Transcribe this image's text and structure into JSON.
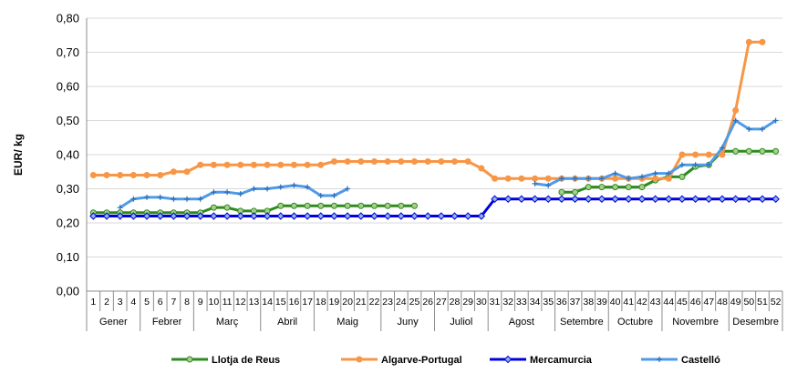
{
  "chart_data": {
    "type": "line",
    "ylabel": "EUR/ kg",
    "ylim": [
      0,
      0.8
    ],
    "yticks": [
      "0,00",
      "0,10",
      "0,20",
      "0,30",
      "0,40",
      "0,50",
      "0,60",
      "0,70",
      "0,80"
    ],
    "grid": "horizontal",
    "legend_position": "bottom",
    "weeks": [
      "1",
      "2",
      "3",
      "4",
      "5",
      "6",
      "7",
      "8",
      "9",
      "10",
      "11",
      "12",
      "13",
      "14",
      "15",
      "16",
      "17",
      "18",
      "19",
      "20",
      "21",
      "22",
      "23",
      "24",
      "25",
      "26",
      "27",
      "28",
      "29",
      "30",
      "31",
      "32",
      "33",
      "34",
      "35",
      "36",
      "37",
      "38",
      "39",
      "40",
      "41",
      "42",
      "43",
      "44",
      "45",
      "46",
      "47",
      "48",
      "49",
      "50",
      "51",
      "52"
    ],
    "months": [
      {
        "name": "Gener",
        "start": 1,
        "end": 4
      },
      {
        "name": "Febrer",
        "start": 5,
        "end": 8
      },
      {
        "name": "Març",
        "start": 9,
        "end": 13
      },
      {
        "name": "Abril",
        "start": 14,
        "end": 17
      },
      {
        "name": "Maig",
        "start": 18,
        "end": 22
      },
      {
        "name": "Juny",
        "start": 23,
        "end": 26
      },
      {
        "name": "Juliol",
        "start": 27,
        "end": 30
      },
      {
        "name": "Agost",
        "start": 31,
        "end": 35
      },
      {
        "name": "Setembre",
        "start": 36,
        "end": 39
      },
      {
        "name": "Octubre",
        "start": 40,
        "end": 43
      },
      {
        "name": "Novembre",
        "start": 44,
        "end": 48
      },
      {
        "name": "Desembre",
        "start": 49,
        "end": 52
      }
    ],
    "series": [
      {
        "name": "Llotja de Reus",
        "color": "#2e8b1e",
        "marker": "#a6d08a",
        "values": [
          0.23,
          0.23,
          0.23,
          0.23,
          0.23,
          0.23,
          0.23,
          0.23,
          0.23,
          0.245,
          0.245,
          0.235,
          0.235,
          0.235,
          0.25,
          0.25,
          0.25,
          0.25,
          0.25,
          0.25,
          0.25,
          0.25,
          0.25,
          0.25,
          0.25,
          null,
          null,
          null,
          null,
          null,
          null,
          null,
          null,
          null,
          null,
          0.29,
          0.29,
          0.305,
          0.305,
          0.305,
          0.305,
          0.305,
          0.325,
          0.335,
          0.335,
          0.365,
          0.37,
          0.41,
          0.41,
          0.41,
          0.41,
          0.41
        ]
      },
      {
        "name": "Algarve-Portugal",
        "color": "#f79646",
        "marker": "#f79646",
        "values": [
          0.34,
          0.34,
          0.34,
          0.34,
          0.34,
          0.34,
          0.35,
          0.35,
          0.37,
          0.37,
          0.37,
          0.37,
          0.37,
          0.37,
          0.37,
          0.37,
          0.37,
          0.37,
          0.38,
          0.38,
          0.38,
          0.38,
          0.38,
          0.38,
          0.38,
          0.38,
          0.38,
          0.38,
          0.38,
          0.36,
          0.33,
          0.33,
          0.33,
          0.33,
          0.33,
          0.33,
          0.33,
          0.33,
          0.33,
          0.33,
          0.33,
          0.33,
          0.33,
          0.33,
          0.4,
          0.4,
          0.4,
          0.4,
          0.53,
          0.73,
          0.73,
          null
        ]
      },
      {
        "name": "Mercamurcia",
        "color": "#0000e0",
        "marker": "#8fb4e3",
        "values": [
          0.22,
          0.22,
          0.22,
          0.22,
          0.22,
          0.22,
          0.22,
          0.22,
          0.22,
          0.22,
          0.22,
          0.22,
          0.22,
          0.22,
          0.22,
          0.22,
          0.22,
          0.22,
          0.22,
          0.22,
          0.22,
          0.22,
          0.22,
          0.22,
          0.22,
          0.22,
          0.22,
          0.22,
          0.22,
          0.22,
          0.27,
          0.27,
          0.27,
          0.27,
          0.27,
          0.27,
          0.27,
          0.27,
          0.27,
          0.27,
          0.27,
          0.27,
          0.27,
          0.27,
          0.27,
          0.27,
          0.27,
          0.27,
          0.27,
          0.27,
          0.27,
          0.27
        ]
      },
      {
        "name": "Castelló",
        "color": "#4f9be8",
        "marker": "#4f9be8",
        "values": [
          null,
          null,
          0.245,
          0.27,
          0.275,
          0.275,
          0.27,
          0.27,
          0.27,
          0.29,
          0.29,
          0.285,
          0.3,
          0.3,
          0.305,
          0.31,
          0.305,
          0.28,
          0.28,
          0.3,
          null,
          null,
          null,
          null,
          null,
          null,
          null,
          null,
          null,
          null,
          null,
          null,
          null,
          0.315,
          0.31,
          0.33,
          0.33,
          0.33,
          0.33,
          0.345,
          0.33,
          0.335,
          0.345,
          0.345,
          0.37,
          0.37,
          0.37,
          0.42,
          0.5,
          0.475,
          0.475,
          0.5
        ]
      }
    ]
  }
}
